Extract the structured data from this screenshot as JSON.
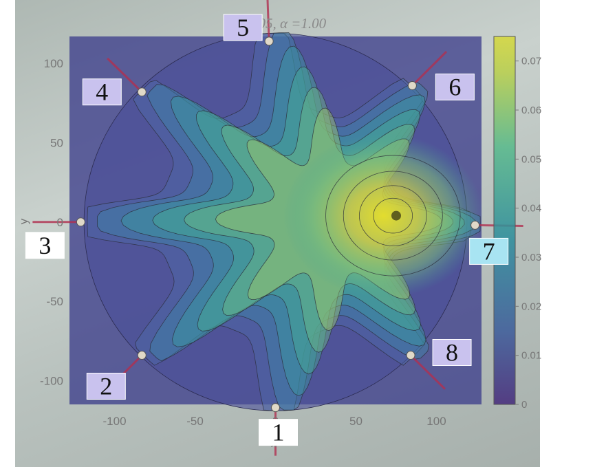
{
  "chart_data": {
    "type": "heatmap",
    "title": "β =1.05, α =1.00",
    "xlabel": "x",
    "ylabel": "y",
    "xlim": [
      -128,
      128
    ],
    "ylim": [
      -115,
      117
    ],
    "x_ticks": [
      "-100",
      "-50",
      "0",
      "50",
      "100"
    ],
    "x_tick_values": [
      -100,
      -50,
      0,
      50,
      100
    ],
    "y_ticks": [
      "100",
      "50",
      "0",
      "-50",
      "-100"
    ],
    "y_tick_values": [
      100,
      50,
      0,
      -50,
      -100
    ],
    "colorbar": {
      "range": [
        0,
        0.075
      ],
      "ticks": [
        "0.07",
        "0.06",
        "0.05",
        "0.04",
        "0.03",
        "0.02",
        "0.01",
        "0"
      ],
      "tick_values": [
        0.07,
        0.06,
        0.05,
        0.04,
        0.03,
        0.02,
        0.01,
        0
      ],
      "colormap": "viridis (semi-transparent overlay on photograph)"
    },
    "boundary_radius": 119,
    "peak": {
      "x": 75,
      "y": 4,
      "value": 0.075
    },
    "electrodes": [
      {
        "label": "1",
        "x": 0,
        "y": -117
      },
      {
        "label": "2",
        "x": -83,
        "y": -84
      },
      {
        "label": "3",
        "x": -121,
        "y": 0
      },
      {
        "label": "4",
        "x": -83,
        "y": 82
      },
      {
        "label": "5",
        "x": -4,
        "y": 114
      },
      {
        "label": "6",
        "x": 85,
        "y": 86
      },
      {
        "label": "7",
        "x": 124,
        "y": -2
      },
      {
        "label": "8",
        "x": 84,
        "y": -84
      }
    ]
  },
  "colors": {
    "plot_background": "#3d3f8c",
    "low": "#46327e",
    "mid": "#2a9d8f",
    "high": "#d9d93a"
  }
}
